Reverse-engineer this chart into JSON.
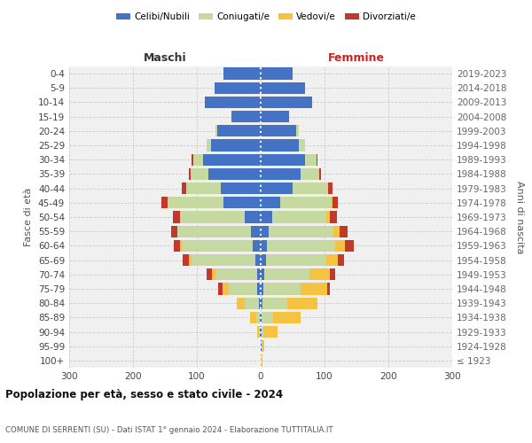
{
  "age_groups": [
    "100+",
    "95-99",
    "90-94",
    "85-89",
    "80-84",
    "75-79",
    "70-74",
    "65-69",
    "60-64",
    "55-59",
    "50-54",
    "45-49",
    "40-44",
    "35-39",
    "30-34",
    "25-29",
    "20-24",
    "15-19",
    "10-14",
    "5-9",
    "0-4"
  ],
  "birth_years": [
    "≤ 1923",
    "1924-1928",
    "1929-1933",
    "1934-1938",
    "1939-1943",
    "1944-1948",
    "1949-1953",
    "1954-1958",
    "1959-1963",
    "1964-1968",
    "1969-1973",
    "1974-1978",
    "1979-1983",
    "1984-1988",
    "1989-1993",
    "1994-1998",
    "1999-2003",
    "2004-2008",
    "2009-2013",
    "2014-2018",
    "2019-2023"
  ],
  "male_celibi": [
    0,
    0,
    1,
    2,
    3,
    5,
    6,
    9,
    12,
    15,
    25,
    58,
    62,
    82,
    90,
    78,
    68,
    46,
    87,
    72,
    58
  ],
  "male_coniugati": [
    0,
    0,
    2,
    5,
    22,
    45,
    65,
    100,
    112,
    115,
    100,
    88,
    55,
    28,
    16,
    7,
    3,
    0,
    0,
    0,
    0
  ],
  "male_vedovi": [
    0,
    0,
    3,
    9,
    12,
    10,
    6,
    3,
    2,
    1,
    1,
    0,
    0,
    0,
    0,
    0,
    0,
    0,
    0,
    0,
    0
  ],
  "male_divorziati": [
    0,
    0,
    0,
    0,
    0,
    6,
    8,
    10,
    10,
    9,
    12,
    9,
    6,
    3,
    2,
    0,
    0,
    0,
    0,
    0,
    0
  ],
  "female_celibi": [
    0,
    1,
    1,
    2,
    3,
    4,
    5,
    8,
    10,
    12,
    18,
    30,
    50,
    62,
    70,
    60,
    55,
    44,
    80,
    70,
    50
  ],
  "female_coniugati": [
    0,
    0,
    3,
    18,
    38,
    58,
    72,
    95,
    107,
    102,
    85,
    80,
    55,
    30,
    18,
    10,
    5,
    0,
    0,
    0,
    0
  ],
  "female_vedovi": [
    3,
    5,
    22,
    42,
    48,
    42,
    32,
    18,
    15,
    10,
    5,
    2,
    1,
    0,
    0,
    0,
    0,
    0,
    0,
    0,
    0
  ],
  "female_divorziati": [
    0,
    0,
    0,
    0,
    0,
    5,
    7,
    10,
    14,
    12,
    12,
    9,
    6,
    3,
    1,
    0,
    0,
    0,
    0,
    0,
    0
  ],
  "colors": {
    "celibi": "#4472c4",
    "coniugati": "#c5d9a0",
    "vedovi": "#f5c242",
    "divorziati": "#c0392b"
  },
  "legend_labels": [
    "Celibi/Nubili",
    "Coniugati/e",
    "Vedovi/e",
    "Divorziati/e"
  ],
  "label_maschi": "Maschi",
  "label_femmine": "Femmine",
  "ylabel_left": "Fasce di età",
  "ylabel_right": "Anni di nascita",
  "title": "Popolazione per età, sesso e stato civile - 2024",
  "subtitle": "COMUNE DI SERRENTI (SU) - Dati ISTAT 1° gennaio 2024 - Elaborazione TUTTITALIA.IT",
  "xlim": 300,
  "bg_color": "#ffffff",
  "plot_bg": "#f0f0f0",
  "grid_color": "#cccccc"
}
